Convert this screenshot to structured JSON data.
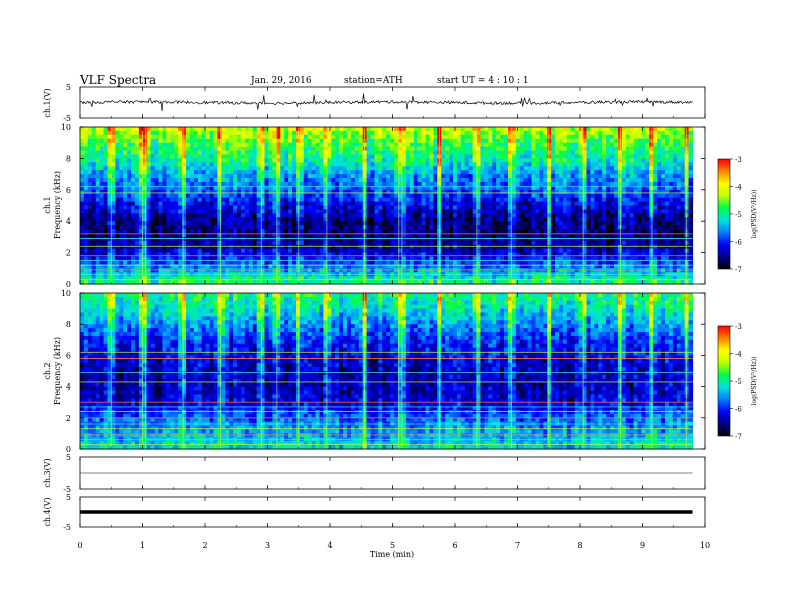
{
  "header": {
    "title": "VLF  Spectra",
    "date": "Jan. 29, 2016",
    "station": "station=ATH",
    "start": "start  UT  =   4  : 10 : 1"
  },
  "colorbar": {
    "label": "log(PSD(V²/Hz))",
    "ticks": [
      "-3",
      "-4",
      "-5",
      "-6",
      "-7"
    ],
    "range": [
      -7,
      -3
    ],
    "colors": [
      "#000000",
      "#00008b",
      "#0000ff",
      "#0080ff",
      "#00e0e0",
      "#00ff40",
      "#c0ff00",
      "#ffff00",
      "#ff8000",
      "#ff0000",
      "#ffffff"
    ]
  },
  "chart_data": [
    {
      "type": "line",
      "name": "ch1",
      "ylabel": "ch.1(V)",
      "ylim": [
        -5,
        5
      ],
      "yticks": [
        "5",
        "-5"
      ],
      "level": 0,
      "description_values": {
        "mean": 0,
        "spike_amplitude": 2.5
      }
    },
    {
      "type": "heatmap",
      "name": "ch1-spectrogram",
      "ylabel": "ch.1",
      "ylabel2": "Frequency  (kHz)",
      "ylim": [
        0,
        10
      ],
      "yticks": [
        "0",
        "2",
        "4",
        "6",
        "8",
        "10"
      ],
      "z_range": [
        -7,
        -3
      ],
      "bands_khz": [
        0.3,
        0.6,
        0.9,
        1.2,
        1.5,
        1.8,
        2.4,
        2.9,
        3.2,
        5.8,
        6.2
      ],
      "mean_log_psd_profile": [
        {
          "f_khz": 0,
          "z": -4.8
        },
        {
          "f_khz": 1,
          "z": -5.6
        },
        {
          "f_khz": 2,
          "z": -6.3
        },
        {
          "f_khz": 3,
          "z": -6.6
        },
        {
          "f_khz": 4,
          "z": -6.6
        },
        {
          "f_khz": 5,
          "z": -6.2
        },
        {
          "f_khz": 6,
          "z": -5.8
        },
        {
          "f_khz": 7,
          "z": -5.5
        },
        {
          "f_khz": 8,
          "z": -5.0
        },
        {
          "f_khz": 9,
          "z": -4.7
        },
        {
          "f_khz": 10,
          "z": -4.2
        }
      ]
    },
    {
      "type": "heatmap",
      "name": "ch2-spectrogram",
      "ylabel": "ch.2",
      "ylabel2": "Frequency  (kHz)",
      "ylim": [
        0,
        10
      ],
      "yticks": [
        "0",
        "2",
        "4",
        "6",
        "8",
        "10"
      ],
      "z_range": [
        -7,
        -3
      ],
      "bands_khz": [
        0.3,
        0.6,
        0.9,
        1.3,
        1.6,
        2.0,
        2.4,
        2.7,
        3.0,
        4.3,
        4.9,
        5.8,
        6.2
      ],
      "mean_log_psd_profile": [
        {
          "f_khz": 0,
          "z": -5.2
        },
        {
          "f_khz": 1,
          "z": -5.5
        },
        {
          "f_khz": 2,
          "z": -5.8
        },
        {
          "f_khz": 3,
          "z": -6.3
        },
        {
          "f_khz": 4,
          "z": -6.4
        },
        {
          "f_khz": 5,
          "z": -6.4
        },
        {
          "f_khz": 6,
          "z": -6.2
        },
        {
          "f_khz": 7,
          "z": -6.0
        },
        {
          "f_khz": 8,
          "z": -5.6
        },
        {
          "f_khz": 9,
          "z": -5.2
        },
        {
          "f_khz": 10,
          "z": -4.9
        }
      ]
    },
    {
      "type": "line",
      "name": "ch3",
      "ylabel": "ch.3(V)",
      "ylim": [
        -5,
        5
      ],
      "yticks": [
        "5",
        "-5"
      ],
      "level": 0
    },
    {
      "type": "line",
      "name": "ch4",
      "ylabel": "ch.4(V)",
      "ylim": [
        -5,
        5
      ],
      "yticks": [
        "5",
        "-5"
      ],
      "level": 0
    }
  ],
  "x_axis": {
    "label": "Time  (min)",
    "xlim": [
      0,
      10
    ],
    "ticks": [
      "0",
      "1",
      "2",
      "3",
      "4",
      "5",
      "6",
      "7",
      "8",
      "9",
      "10"
    ],
    "data_end": 9.8,
    "burst_times_min": [
      0.5,
      1.0,
      1.05,
      1.65,
      2.25,
      2.9,
      3.15,
      3.5,
      3.95,
      4.55,
      5.1,
      5.15,
      5.75,
      6.35,
      6.9,
      7.5,
      8.05,
      8.65,
      9.15,
      9.7
    ]
  }
}
